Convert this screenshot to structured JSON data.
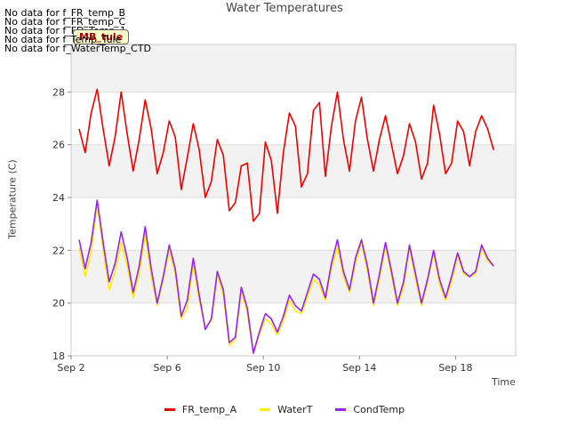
{
  "warnings": [
    "No data for f_FR_temp_B",
    "No data for f_FR_temp_C",
    "No data for f_FD_Temp_1",
    "No data for f_Temp_Tule",
    "No data for f_WaterTemp_CTD"
  ],
  "badge": "MB_tule",
  "colors": {
    "FR_temp_A": "#ee0000",
    "WaterT": "#ffee00",
    "CondTemp": "#9922ee"
  },
  "chart_data": {
    "type": "line",
    "title": "Water Temperatures",
    "xlabel": "Time",
    "ylabel": "Temperature (C)",
    "ylim": [
      18,
      29.8
    ],
    "xlim": [
      "Sep 2",
      "Sep 20"
    ],
    "x_ticks": [
      "Sep 2",
      "Sep 6",
      "Sep 10",
      "Sep 14",
      "Sep 18"
    ],
    "y_ticks": [
      18,
      20,
      22,
      24,
      26,
      28
    ],
    "grid": true,
    "legend_position": "bottom",
    "series": [
      {
        "name": "FR_temp_A",
        "x": [
          "Sep 2 08:00",
          "Sep 2 14:00",
          "Sep 2 20:00",
          "Sep 3 02:00",
          "Sep 3 08:00",
          "Sep 3 14:00",
          "Sep 3 20:00",
          "Sep 4 02:00",
          "Sep 4 08:00",
          "Sep 4 14:00",
          "Sep 4 20:00",
          "Sep 5 02:00",
          "Sep 5 08:00",
          "Sep 5 14:00",
          "Sep 5 20:00",
          "Sep 6 02:00",
          "Sep 6 08:00",
          "Sep 6 14:00",
          "Sep 6 20:00",
          "Sep 7 02:00",
          "Sep 7 08:00",
          "Sep 7 14:00",
          "Sep 7 20:00",
          "Sep 8 02:00",
          "Sep 8 08:00",
          "Sep 8 14:00",
          "Sep 8 20:00",
          "Sep 9 02:00",
          "Sep 9 08:00",
          "Sep 9 14:00",
          "Sep 9 20:00",
          "Sep 10 02:00",
          "Sep 10 08:00",
          "Sep 10 14:00",
          "Sep 10 20:00",
          "Sep 11 02:00",
          "Sep 11 08:00",
          "Sep 11 14:00",
          "Sep 11 20:00",
          "Sep 12 02:00",
          "Sep 12 08:00",
          "Sep 12 14:00",
          "Sep 12 20:00",
          "Sep 13 02:00",
          "Sep 13 08:00",
          "Sep 13 14:00",
          "Sep 13 20:00",
          "Sep 14 02:00",
          "Sep 14 08:00",
          "Sep 14 14:00",
          "Sep 14 20:00",
          "Sep 15 02:00",
          "Sep 15 08:00",
          "Sep 15 14:00",
          "Sep 15 20:00",
          "Sep 16 02:00",
          "Sep 16 08:00",
          "Sep 16 14:00",
          "Sep 16 20:00",
          "Sep 17 02:00",
          "Sep 17 08:00",
          "Sep 17 14:00",
          "Sep 17 20:00",
          "Sep 18 02:00",
          "Sep 18 08:00",
          "Sep 18 14:00",
          "Sep 18 20:00",
          "Sep 19 02:00",
          "Sep 19 08:00",
          "Sep 19 14:00"
        ],
        "values": [
          26.6,
          25.7,
          27.2,
          28.1,
          26.6,
          25.2,
          26.3,
          28.0,
          26.4,
          25.0,
          26.2,
          27.7,
          26.6,
          24.9,
          25.7,
          26.9,
          26.3,
          24.3,
          25.5,
          26.8,
          25.8,
          24.0,
          24.6,
          26.2,
          25.6,
          23.5,
          23.8,
          25.2,
          25.3,
          23.1,
          23.4,
          26.1,
          25.4,
          23.4,
          25.7,
          27.2,
          26.7,
          24.4,
          24.9,
          27.3,
          27.6,
          24.8,
          26.7,
          28.0,
          26.2,
          25.0,
          26.9,
          27.8,
          26.2,
          25.0,
          26.2,
          27.1,
          26.0,
          24.9,
          25.6,
          26.8,
          26.1,
          24.7,
          25.3,
          27.5,
          26.4,
          24.9,
          25.3,
          26.9,
          26.5,
          25.2,
          26.5,
          27.1,
          26.6,
          25.8
        ]
      },
      {
        "name": "WaterT",
        "x": [
          "Sep 2 08:00",
          "Sep 2 14:00",
          "Sep 2 20:00",
          "Sep 3 02:00",
          "Sep 3 08:00",
          "Sep 3 14:00",
          "Sep 3 20:00",
          "Sep 4 02:00",
          "Sep 4 08:00",
          "Sep 4 14:00",
          "Sep 4 20:00",
          "Sep 5 02:00",
          "Sep 5 08:00",
          "Sep 5 14:00",
          "Sep 5 20:00",
          "Sep 6 02:00",
          "Sep 6 08:00",
          "Sep 6 14:00",
          "Sep 6 20:00",
          "Sep 7 02:00",
          "Sep 7 08:00",
          "Sep 7 14:00",
          "Sep 7 20:00",
          "Sep 8 02:00",
          "Sep 8 08:00",
          "Sep 8 14:00",
          "Sep 8 20:00",
          "Sep 9 02:00",
          "Sep 9 08:00",
          "Sep 9 14:00",
          "Sep 9 20:00",
          "Sep 10 02:00",
          "Sep 10 08:00",
          "Sep 10 14:00",
          "Sep 10 20:00",
          "Sep 11 02:00",
          "Sep 11 08:00",
          "Sep 11 14:00",
          "Sep 11 20:00",
          "Sep 12 02:00",
          "Sep 12 08:00",
          "Sep 12 14:00",
          "Sep 12 20:00",
          "Sep 13 02:00",
          "Sep 13 08:00",
          "Sep 13 14:00",
          "Sep 13 20:00",
          "Sep 14 02:00",
          "Sep 14 08:00",
          "Sep 14 14:00",
          "Sep 14 20:00",
          "Sep 15 02:00",
          "Sep 15 08:00",
          "Sep 15 14:00",
          "Sep 15 20:00",
          "Sep 16 02:00",
          "Sep 16 08:00",
          "Sep 16 14:00",
          "Sep 16 20:00",
          "Sep 17 02:00",
          "Sep 17 08:00",
          "Sep 17 14:00",
          "Sep 17 20:00",
          "Sep 18 02:00",
          "Sep 18 08:00",
          "Sep 18 14:00",
          "Sep 18 20:00",
          "Sep 19 02:00",
          "Sep 19 08:00",
          "Sep 19 14:00"
        ],
        "values": [
          22.1,
          21.0,
          21.9,
          23.8,
          22.0,
          20.5,
          21.2,
          22.3,
          21.4,
          20.2,
          21.1,
          22.6,
          21.0,
          19.9,
          20.9,
          22.0,
          21.1,
          19.4,
          19.8,
          21.5,
          20.1,
          19.1,
          19.3,
          21.1,
          20.3,
          18.4,
          18.6,
          20.5,
          19.6,
          18.1,
          18.8,
          19.4,
          19.2,
          18.8,
          19.3,
          20.1,
          19.7,
          19.6,
          20.2,
          20.9,
          20.7,
          20.1,
          21.3,
          22.1,
          21.0,
          20.4,
          21.5,
          22.3,
          21.2,
          19.9,
          20.9,
          22.2,
          21.0,
          19.9,
          20.6,
          22.1,
          20.9,
          19.9,
          20.8,
          21.9,
          20.7,
          20.1,
          20.8,
          21.8,
          21.1,
          21.0,
          21.1,
          22.1,
          21.6,
          21.4
        ]
      },
      {
        "name": "CondTemp",
        "x": [
          "Sep 2 08:00",
          "Sep 2 14:00",
          "Sep 2 20:00",
          "Sep 3 02:00",
          "Sep 3 08:00",
          "Sep 3 14:00",
          "Sep 3 20:00",
          "Sep 4 02:00",
          "Sep 4 08:00",
          "Sep 4 14:00",
          "Sep 4 20:00",
          "Sep 5 02:00",
          "Sep 5 08:00",
          "Sep 5 14:00",
          "Sep 5 20:00",
          "Sep 6 02:00",
          "Sep 6 08:00",
          "Sep 6 14:00",
          "Sep 6 20:00",
          "Sep 7 02:00",
          "Sep 7 08:00",
          "Sep 7 14:00",
          "Sep 7 20:00",
          "Sep 8 02:00",
          "Sep 8 08:00",
          "Sep 8 14:00",
          "Sep 8 20:00",
          "Sep 9 02:00",
          "Sep 9 08:00",
          "Sep 9 14:00",
          "Sep 9 20:00",
          "Sep 10 02:00",
          "Sep 10 08:00",
          "Sep 10 14:00",
          "Sep 10 20:00",
          "Sep 11 02:00",
          "Sep 11 08:00",
          "Sep 11 14:00",
          "Sep 11 20:00",
          "Sep 12 02:00",
          "Sep 12 08:00",
          "Sep 12 14:00",
          "Sep 12 20:00",
          "Sep 13 02:00",
          "Sep 13 08:00",
          "Sep 13 14:00",
          "Sep 13 20:00",
          "Sep 14 02:00",
          "Sep 14 08:00",
          "Sep 14 14:00",
          "Sep 14 20:00",
          "Sep 15 02:00",
          "Sep 15 08:00",
          "Sep 15 14:00",
          "Sep 15 20:00",
          "Sep 16 02:00",
          "Sep 16 08:00",
          "Sep 16 14:00",
          "Sep 16 20:00",
          "Sep 17 02:00",
          "Sep 17 08:00",
          "Sep 17 14:00",
          "Sep 17 20:00",
          "Sep 18 02:00",
          "Sep 18 08:00",
          "Sep 18 14:00",
          "Sep 18 20:00",
          "Sep 19 02:00",
          "Sep 19 08:00",
          "Sep 19 14:00"
        ],
        "values": [
          22.4,
          21.3,
          22.3,
          23.9,
          22.3,
          20.8,
          21.5,
          22.7,
          21.7,
          20.4,
          21.4,
          22.9,
          21.3,
          20.0,
          21.0,
          22.2,
          21.3,
          19.5,
          20.1,
          21.7,
          20.3,
          19.0,
          19.4,
          21.2,
          20.5,
          18.5,
          18.7,
          20.6,
          19.8,
          18.1,
          18.9,
          19.6,
          19.4,
          18.9,
          19.5,
          20.3,
          19.9,
          19.7,
          20.4,
          21.1,
          20.9,
          20.2,
          21.5,
          22.4,
          21.2,
          20.5,
          21.7,
          22.4,
          21.4,
          20.0,
          21.1,
          22.3,
          21.2,
          20.0,
          20.8,
          22.2,
          21.1,
          20.0,
          20.9,
          22.0,
          20.9,
          20.2,
          21.0,
          21.9,
          21.2,
          21.0,
          21.2,
          22.2,
          21.7,
          21.4
        ]
      }
    ]
  }
}
